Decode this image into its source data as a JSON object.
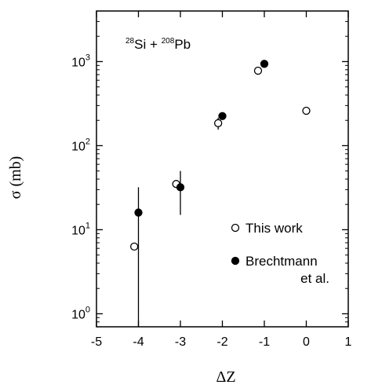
{
  "chart_data": {
    "type": "scatter",
    "xlabel": "ΔZ",
    "ylabel": "σ (mb)",
    "xlim": [
      -5,
      1
    ],
    "ylim": [
      0.7,
      4000
    ],
    "yscale": "log",
    "x_ticks": [
      "-5",
      "-4",
      "-3",
      "-2",
      "-1",
      "0",
      "1"
    ],
    "annotation": {
      "prefix_mass": "28",
      "prefix_el": "Si + ",
      "suffix_mass": "208",
      "suffix_el": "Pb"
    },
    "legend_position": "right",
    "series": [
      {
        "name": "This work",
        "marker": "open-circle",
        "points": [
          {
            "x": -4.1,
            "y": 6.3,
            "err_low": null,
            "err_high": null
          },
          {
            "x": -3.1,
            "y": 35,
            "err_low": null,
            "err_high": null
          },
          {
            "x": -2.1,
            "y": 185,
            "err_low": 155,
            "err_high": 215
          },
          {
            "x": -1.15,
            "y": 780,
            "err_low": null,
            "err_high": null
          },
          {
            "x": 0.0,
            "y": 260,
            "err_low": null,
            "err_high": null
          }
        ]
      },
      {
        "name": "Brechtmann et al.",
        "name_line1": "Brechtmann",
        "name_line2": "et al.",
        "marker": "filled-circle",
        "points": [
          {
            "x": -4.0,
            "y": 16,
            "err_low": 0.3,
            "err_high": 32
          },
          {
            "x": -3.0,
            "y": 32,
            "err_low": 15,
            "err_high": 50
          },
          {
            "x": -2.0,
            "y": 225,
            "err_low": null,
            "err_high": null
          },
          {
            "x": -1.0,
            "y": 940,
            "err_low": null,
            "err_high": null
          }
        ]
      }
    ]
  }
}
